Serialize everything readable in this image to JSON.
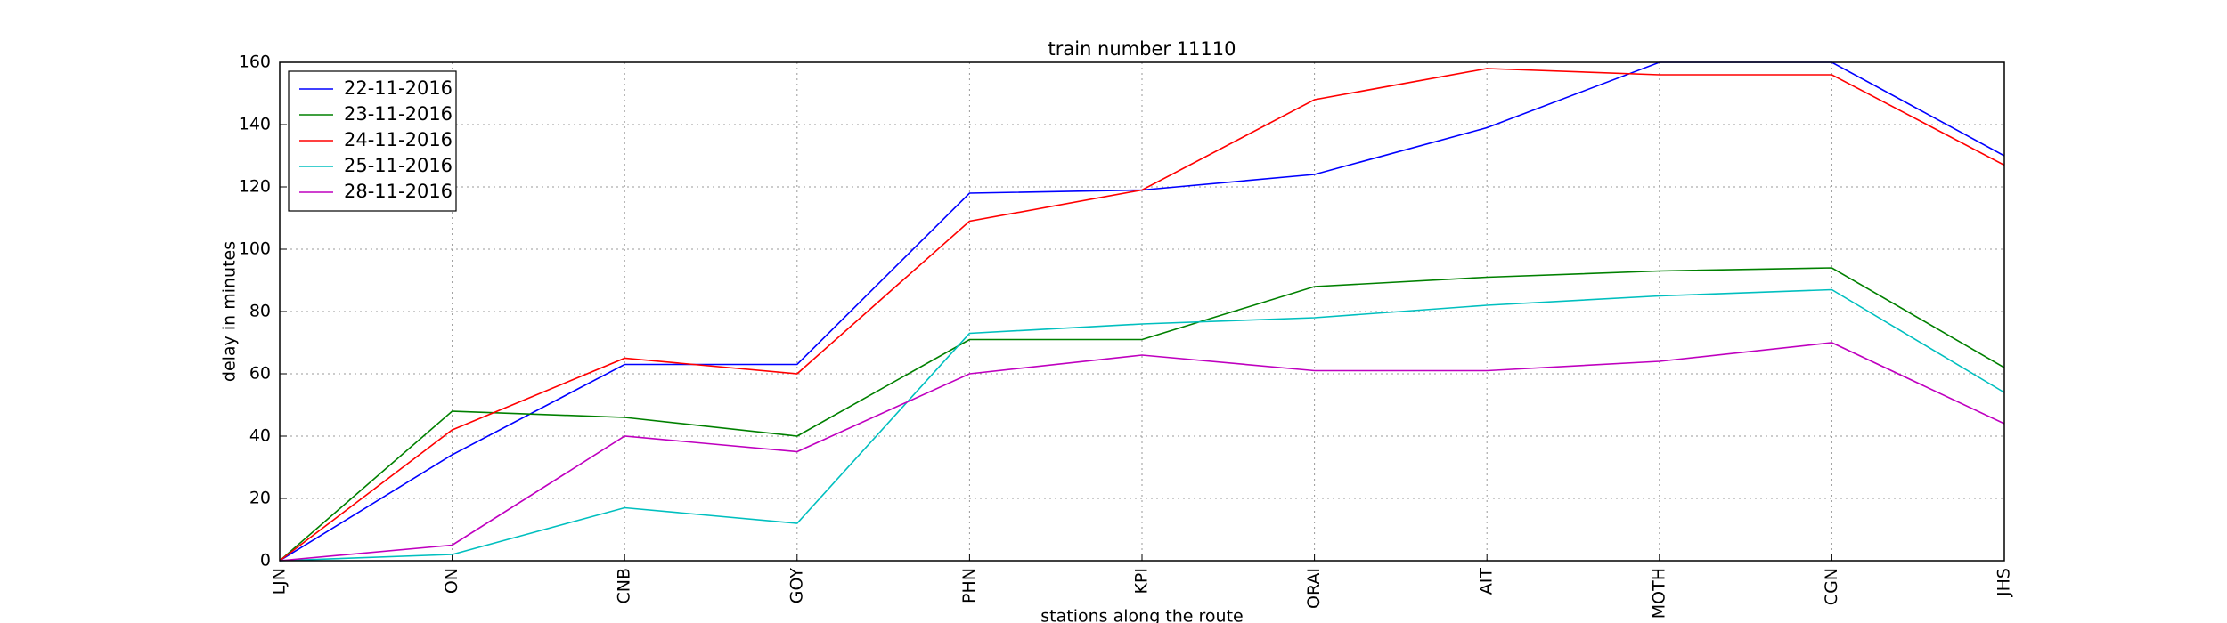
{
  "chart_data": {
    "type": "line",
    "title": "train number 11110",
    "x_label": "stations along the route",
    "y_label": "delay in minutes",
    "categories": [
      "LJN",
      "ON",
      "CNB",
      "GOY",
      "PHN",
      "KPI",
      "ORAI",
      "AIT",
      "MOTH",
      "CGN",
      "JHS"
    ],
    "series": [
      {
        "name": "22-11-2016",
        "color": "#0000ff",
        "values": [
          0,
          34,
          63,
          63,
          118,
          119,
          124,
          139,
          160,
          160,
          130
        ]
      },
      {
        "name": "23-11-2016",
        "color": "#008000",
        "values": [
          0,
          48,
          46,
          40,
          71,
          71,
          88,
          91,
          93,
          94,
          62
        ]
      },
      {
        "name": "24-11-2016",
        "color": "#ff0000",
        "values": [
          0,
          42,
          65,
          60,
          109,
          119,
          148,
          158,
          156,
          156,
          127
        ]
      },
      {
        "name": "25-11-2016",
        "color": "#00bfbf",
        "values": [
          0,
          2,
          17,
          12,
          73,
          76,
          78,
          82,
          85,
          87,
          54
        ]
      },
      {
        "name": "28-11-2016",
        "color": "#bf00bf",
        "values": [
          0,
          5,
          40,
          35,
          60,
          66,
          61,
          61,
          64,
          70,
          44
        ]
      }
    ],
    "ylim": [
      0,
      160
    ],
    "yticks": [
      0,
      20,
      40,
      60,
      80,
      100,
      120,
      140,
      160
    ],
    "grid": true,
    "legend": "upper-left"
  }
}
